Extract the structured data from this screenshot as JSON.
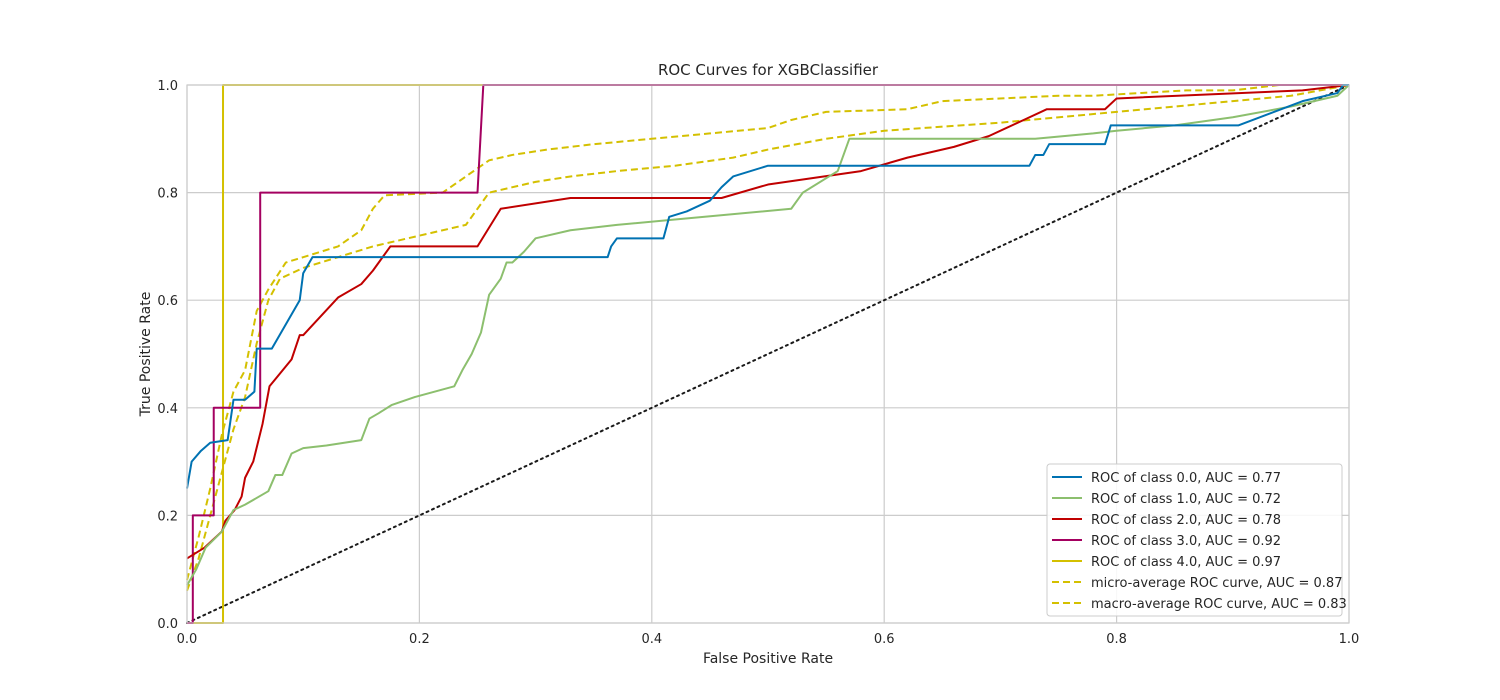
{
  "chart_data": {
    "type": "line",
    "title": "ROC Curves for XGBClassifier",
    "xlabel": "False Positive Rate",
    "ylabel": "True Positive Rate",
    "xlim": [
      0.0,
      1.0
    ],
    "ylim": [
      0.0,
      1.0
    ],
    "xticks": [
      "0.0",
      "0.2",
      "0.4",
      "0.6",
      "0.8",
      "1.0"
    ],
    "yticks": [
      "0.0",
      "0.2",
      "0.4",
      "0.6",
      "0.8",
      "1.0"
    ],
    "grid": true,
    "legend_position": "lower-right",
    "series": [
      {
        "name": "ROC of class 0.0, AUC = 0.77",
        "color": "#0072b2",
        "dash": "solid",
        "x": [
          0.0,
          0.004,
          0.012,
          0.02,
          0.035,
          0.04,
          0.05,
          0.058,
          0.06,
          0.073,
          0.097,
          0.1,
          0.108,
          0.11,
          0.362,
          0.365,
          0.37,
          0.41,
          0.415,
          0.43,
          0.44,
          0.45,
          0.46,
          0.47,
          0.5,
          0.725,
          0.73,
          0.737,
          0.742,
          0.79,
          0.795,
          0.905,
          0.96,
          0.99,
          0.995,
          1.0
        ],
        "y": [
          0.25,
          0.3,
          0.32,
          0.335,
          0.34,
          0.415,
          0.415,
          0.43,
          0.51,
          0.51,
          0.6,
          0.65,
          0.68,
          0.68,
          0.68,
          0.7,
          0.715,
          0.715,
          0.755,
          0.765,
          0.775,
          0.785,
          0.81,
          0.83,
          0.85,
          0.85,
          0.87,
          0.87,
          0.89,
          0.89,
          0.925,
          0.925,
          0.97,
          0.985,
          1.0,
          1.0
        ]
      },
      {
        "name": "ROC of class 1.0, AUC = 0.72",
        "color": "#8cbf6e",
        "dash": "solid",
        "x": [
          0.0,
          0.008,
          0.016,
          0.03,
          0.04,
          0.05,
          0.07,
          0.076,
          0.082,
          0.09,
          0.1,
          0.12,
          0.15,
          0.157,
          0.165,
          0.176,
          0.196,
          0.23,
          0.237,
          0.245,
          0.253,
          0.26,
          0.27,
          0.275,
          0.28,
          0.29,
          0.3,
          0.33,
          0.37,
          0.42,
          0.52,
          0.53,
          0.56,
          0.57,
          0.73,
          0.78,
          0.8,
          0.85,
          0.9,
          0.95,
          0.99,
          1.0
        ],
        "y": [
          0.07,
          0.1,
          0.14,
          0.17,
          0.21,
          0.22,
          0.245,
          0.275,
          0.275,
          0.315,
          0.325,
          0.33,
          0.34,
          0.38,
          0.39,
          0.405,
          0.42,
          0.44,
          0.47,
          0.5,
          0.54,
          0.61,
          0.64,
          0.67,
          0.67,
          0.69,
          0.715,
          0.73,
          0.74,
          0.75,
          0.77,
          0.8,
          0.84,
          0.9,
          0.9,
          0.91,
          0.915,
          0.925,
          0.94,
          0.96,
          0.98,
          1.0
        ]
      },
      {
        "name": "ROC of class 2.0, AUC = 0.78",
        "color": "#c00000",
        "dash": "solid",
        "x": [
          0.0,
          0.015,
          0.03,
          0.033,
          0.041,
          0.047,
          0.05,
          0.057,
          0.065,
          0.071,
          0.09,
          0.097,
          0.1,
          0.13,
          0.15,
          0.16,
          0.175,
          0.25,
          0.27,
          0.33,
          0.46,
          0.5,
          0.58,
          0.62,
          0.66,
          0.69,
          0.72,
          0.74,
          0.79,
          0.8,
          0.96,
          1.0
        ],
        "y": [
          0.12,
          0.14,
          0.17,
          0.19,
          0.21,
          0.235,
          0.27,
          0.3,
          0.37,
          0.44,
          0.49,
          0.535,
          0.535,
          0.605,
          0.63,
          0.655,
          0.7,
          0.7,
          0.77,
          0.79,
          0.79,
          0.815,
          0.84,
          0.865,
          0.885,
          0.905,
          0.935,
          0.955,
          0.955,
          0.975,
          0.99,
          1.0
        ]
      },
      {
        "name": "ROC of class 3.0, AUC = 0.92",
        "color": "#a40060",
        "dash": "solid",
        "x": [
          0.0,
          0.005,
          0.005,
          0.023,
          0.023,
          0.063,
          0.063,
          0.25,
          0.255,
          1.0
        ],
        "y": [
          0.0,
          0.0,
          0.2,
          0.2,
          0.4,
          0.4,
          0.8,
          0.8,
          1.0,
          1.0
        ]
      },
      {
        "name": "ROC of class 4.0, AUC = 0.97",
        "color": "#d4c000",
        "dash": "solid",
        "x": [
          0.0,
          0.031,
          0.031,
          1.0
        ],
        "y": [
          0.0,
          0.0,
          1.0,
          1.0
        ]
      },
      {
        "name": "micro-average ROC curve, AUC = 0.87",
        "color": "#d4c000",
        "dash": "dashed",
        "x": [
          0.0,
          0.01,
          0.02,
          0.03,
          0.04,
          0.05,
          0.06,
          0.07,
          0.085,
          0.1,
          0.13,
          0.15,
          0.16,
          0.17,
          0.22,
          0.24,
          0.26,
          0.28,
          0.31,
          0.35,
          0.4,
          0.45,
          0.5,
          0.52,
          0.55,
          0.62,
          0.65,
          0.75,
          0.78,
          0.86,
          0.9,
          0.94,
          0.98,
          1.0
        ],
        "y": [
          0.08,
          0.16,
          0.25,
          0.35,
          0.43,
          0.47,
          0.58,
          0.62,
          0.67,
          0.68,
          0.7,
          0.73,
          0.77,
          0.795,
          0.8,
          0.83,
          0.86,
          0.87,
          0.88,
          0.89,
          0.9,
          0.91,
          0.92,
          0.935,
          0.95,
          0.955,
          0.97,
          0.98,
          0.98,
          0.99,
          0.99,
          1.0,
          1.0,
          1.0
        ]
      },
      {
        "name": "macro-average ROC curve, AUC = 0.83",
        "color": "#d4c000",
        "dash": "dashed",
        "x": [
          0.0,
          0.01,
          0.02,
          0.03,
          0.04,
          0.05,
          0.06,
          0.07,
          0.08,
          0.1,
          0.13,
          0.16,
          0.18,
          0.2,
          0.24,
          0.26,
          0.3,
          0.33,
          0.37,
          0.42,
          0.47,
          0.5,
          0.55,
          0.6,
          0.7,
          0.8,
          0.9,
          0.95,
          1.0
        ],
        "y": [
          0.06,
          0.12,
          0.2,
          0.28,
          0.36,
          0.42,
          0.52,
          0.6,
          0.64,
          0.66,
          0.68,
          0.7,
          0.71,
          0.72,
          0.74,
          0.8,
          0.82,
          0.83,
          0.84,
          0.85,
          0.865,
          0.88,
          0.9,
          0.915,
          0.93,
          0.95,
          0.97,
          0.98,
          1.0
        ]
      }
    ],
    "reference_line": {
      "x": [
        0.0,
        1.0
      ],
      "y": [
        0.0,
        1.0
      ],
      "color": "#1a1a1a",
      "dash": "dotted"
    }
  }
}
